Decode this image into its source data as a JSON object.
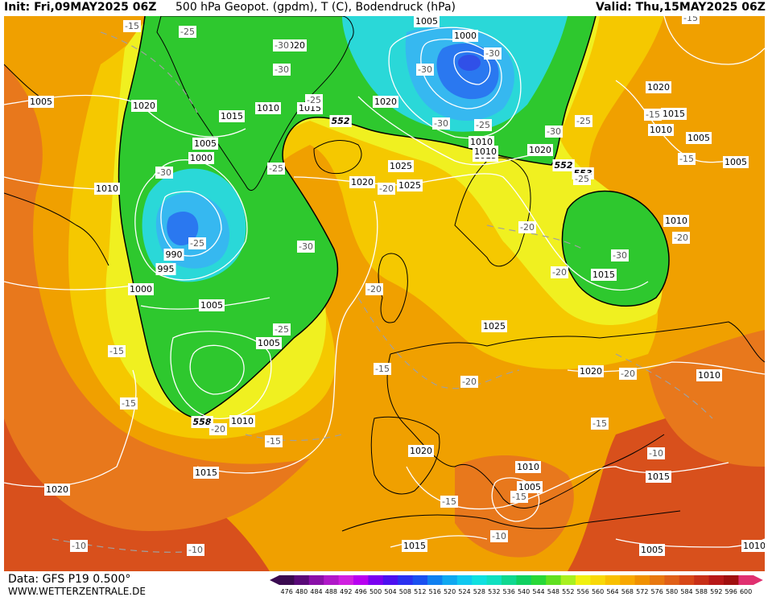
{
  "header": {
    "init": "Init: Fri,09MAY2025 06Z",
    "title": "500 hPa Geopot. (gpdm), T (C), Bodendruck (hPa)",
    "valid": "Valid: Thu,15MAY2025 06Z"
  },
  "footer": {
    "data_source": "Data: GFS P19 0.500°",
    "website": "WWW.WETTERZENTRALE.DE"
  },
  "colorbar": {
    "ticks": [
      "476",
      "480",
      "484",
      "488",
      "492",
      "496",
      "500",
      "504",
      "508",
      "512",
      "516",
      "520",
      "524",
      "528",
      "532",
      "536",
      "540",
      "544",
      "548",
      "552",
      "556",
      "560",
      "564",
      "568",
      "572",
      "576",
      "580",
      "584",
      "588",
      "592",
      "596",
      "600"
    ],
    "colors": [
      "#3a0a50",
      "#5a0a78",
      "#8a10a8",
      "#b018c8",
      "#d020e0",
      "#b800f0",
      "#7a00f0",
      "#4c10f0",
      "#2a30f0",
      "#1a50f0",
      "#1080f0",
      "#10a8f0",
      "#10c8f0",
      "#10e0e0",
      "#10e0c0",
      "#10d890",
      "#10d060",
      "#28d838",
      "#60e020",
      "#a8f020",
      "#f0f010",
      "#f8d808",
      "#f8c000",
      "#f8a800",
      "#f09000",
      "#e87810",
      "#e06018",
      "#d84818",
      "#c83018",
      "#b81818",
      "#a01010",
      "#e03070"
    ]
  },
  "map": {
    "colors": {
      "green": "#2ec82e",
      "cyan": "#2ad8d8",
      "blue_light": "#36b8f0",
      "blue": "#2a78f0",
      "blue_deep": "#3050e8",
      "yellow": "#f0f020",
      "yellow_orange": "#f5c800",
      "orange": "#f0a000",
      "orange_dark": "#e8781c",
      "red": "#d8501c",
      "isobar": "#ffffff",
      "coast": "#000000",
      "isotherm": "#a0a0a0"
    },
    "height_labels": [
      "552",
      "552",
      "553",
      "558"
    ],
    "isobar_labels": [
      "1005",
      "1020",
      "1020",
      "1005",
      "1000",
      "1020",
      "1010",
      "1015",
      "1015",
      "1010",
      "1015",
      "1005",
      "1000",
      "1020",
      "1020",
      "1010",
      "1015",
      "1010",
      "1005",
      "1005",
      "1010",
      "990",
      "995",
      "1025",
      "1020",
      "1025",
      "1010",
      "1015",
      "1000",
      "1005",
      "1005",
      "1010",
      "1025",
      "1020",
      "1010",
      "1020",
      "1010",
      "1005",
      "1015",
      "1015",
      "1020",
      "1015",
      "1005",
      "1010"
    ],
    "temp_labels": [
      "-15",
      "-25",
      "-30",
      "-30",
      "-25",
      "-30",
      "-30",
      "-30",
      "-25",
      "-25",
      "-30",
      "-30",
      "-25",
      "-20",
      "-25",
      "-30",
      "-20",
      "-20",
      "-25",
      "-15",
      "-20",
      "-15",
      "-20",
      "-15",
      "-20",
      "-15",
      "-15",
      "-10",
      "-15",
      "-10",
      "-15",
      "-10",
      "-10",
      "-15",
      "-20",
      "-15",
      "-30",
      "-25",
      "-20",
      "-15"
    ]
  }
}
